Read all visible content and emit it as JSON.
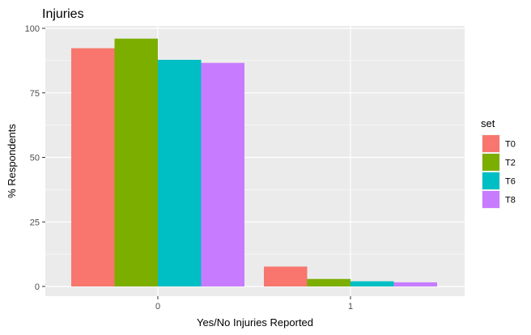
{
  "chart_data": {
    "type": "bar",
    "title": "Injuries",
    "xlabel": "Yes/No Injuries Reported",
    "ylabel": "% Respondents",
    "categories": [
      "0",
      "1"
    ],
    "ylim": [
      0,
      100
    ],
    "yticks": [
      0,
      25,
      50,
      75,
      100
    ],
    "grid": true,
    "legend": {
      "title": "set",
      "position": "right"
    },
    "series": [
      {
        "name": "T0",
        "color": "#F8766D",
        "values": [
          92.3,
          7.7
        ]
      },
      {
        "name": "T2",
        "color": "#7CAE00",
        "values": [
          96.0,
          2.9
        ]
      },
      {
        "name": "T6",
        "color": "#00BFC4",
        "values": [
          87.8,
          2.0
        ]
      },
      {
        "name": "T8",
        "color": "#C77CFF",
        "values": [
          86.6,
          1.6
        ]
      }
    ],
    "panel_color": "#EBEBEB",
    "grid_color": "#FFFFFF"
  }
}
